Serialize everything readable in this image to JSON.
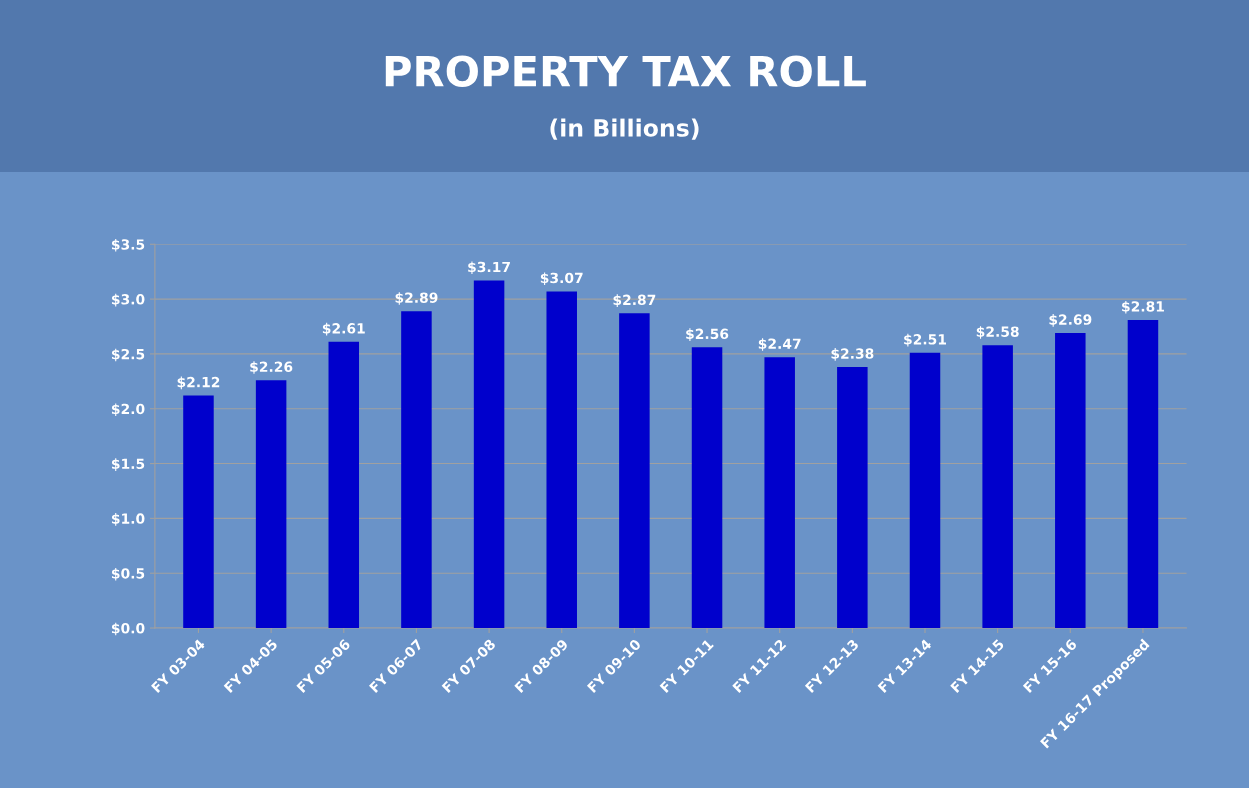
{
  "chart_data": {
    "type": "bar",
    "title": "PROPERTY TAX ROLL",
    "subtitle": "(in Billions)",
    "categories": [
      "FY 03-04",
      "FY 04-05",
      "FY 05-06",
      "FY 06-07",
      "FY 07-08",
      "FY 08-09",
      "FY 09-10",
      "FY 10-11",
      "FY 11-12",
      "FY 12-13",
      "FY 13-14",
      "FY 14-15",
      "FY 15-16",
      "FY 16-17 Proposed"
    ],
    "values": [
      2.12,
      2.26,
      2.61,
      2.89,
      3.17,
      3.07,
      2.87,
      2.56,
      2.47,
      2.38,
      2.51,
      2.58,
      2.69,
      2.81
    ],
    "value_labels": [
      "$2.12",
      "$2.26",
      "$2.61",
      "$2.89",
      "$3.17",
      "$3.07",
      "$2.87",
      "$2.56",
      "$2.47",
      "$2.38",
      "$2.51",
      "$2.58",
      "$2.69",
      "$2.81"
    ],
    "color": "#0000cc",
    "ylim": [
      0,
      3.5
    ],
    "yticks": [
      {
        "value": 0,
        "label": "$0.0"
      },
      {
        "value": 0.5,
        "label": "$0.5"
      },
      {
        "value": 1,
        "label": "$1.0"
      },
      {
        "value": 1.5,
        "label": "$1.5"
      },
      {
        "value": 2,
        "label": "$2.0"
      },
      {
        "value": 2.5,
        "label": "$2.5"
      },
      {
        "value": 3,
        "label": "$3.0"
      },
      {
        "value": 3.5,
        "label": "$3.5"
      }
    ],
    "grid": "y"
  }
}
